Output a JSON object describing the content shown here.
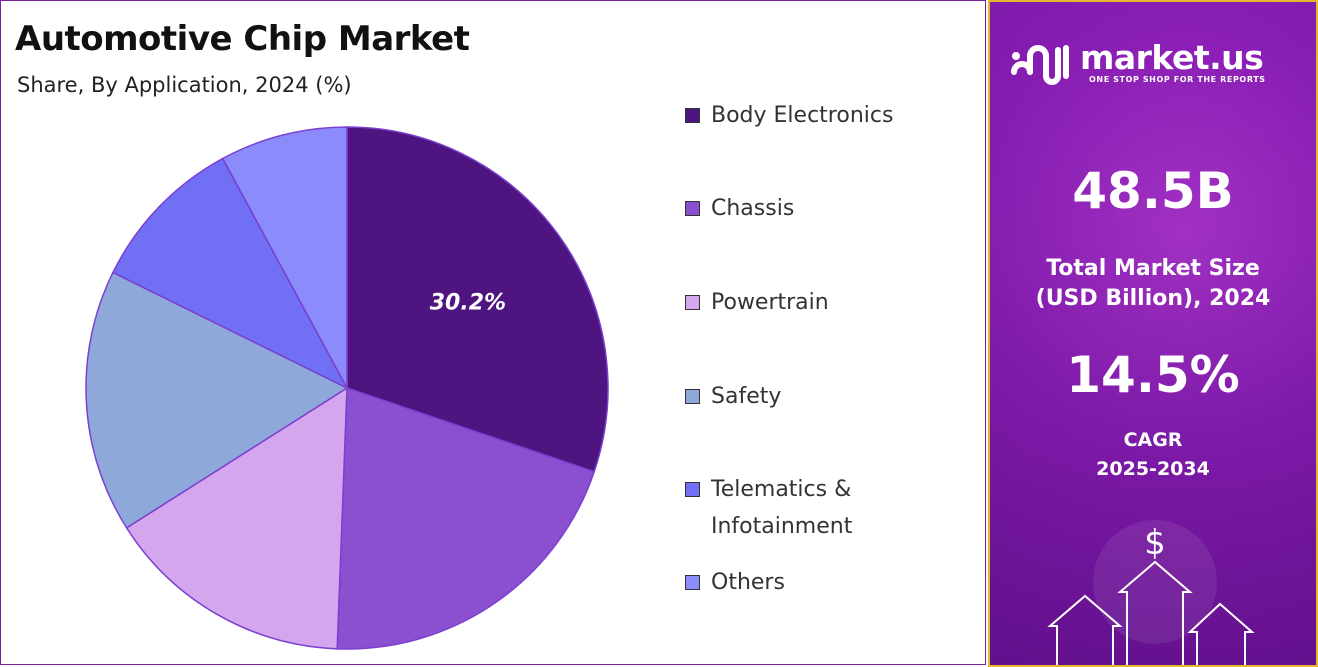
{
  "header": {
    "title": "Automotive Chip Market",
    "subtitle": "Share, By Application, 2024 (%)"
  },
  "chart_data": {
    "type": "pie",
    "categories": [
      "Body Electronics",
      "Chassis",
      "Powertrain",
      "Safety",
      "Telematics & Infotainment",
      "Others"
    ],
    "values": [
      30.2,
      20.4,
      15.4,
      16.3,
      9.8,
      7.9
    ],
    "colors": [
      "#4e1581",
      "#8b50d0",
      "#d3a6ee",
      "#8fa8da",
      "#7170f4",
      "#8b8bfb"
    ],
    "data_labels": [
      {
        "slice": "Body Electronics",
        "text": "30.2%"
      }
    ],
    "legend_position": "right"
  },
  "side_panel": {
    "brand": {
      "name": "market.us",
      "tagline": "ONE STOP SHOP FOR THE REPORTS",
      "logo_icon": "market-us-logo"
    },
    "market_size_value": "48.5B",
    "market_size_label_line1": "Total Market Size",
    "market_size_label_line2": "(USD Billion), 2024",
    "cagr_value": "14.5%",
    "cagr_label_line1": "CAGR",
    "cagr_label_line2": "2025-2034",
    "decoration_icons": [
      "dollar-icon",
      "up-arrow-icon"
    ],
    "dollar_symbol": "$",
    "colors": {
      "accent_border": "#e6b72e",
      "panel": "#8c1fb8"
    }
  }
}
